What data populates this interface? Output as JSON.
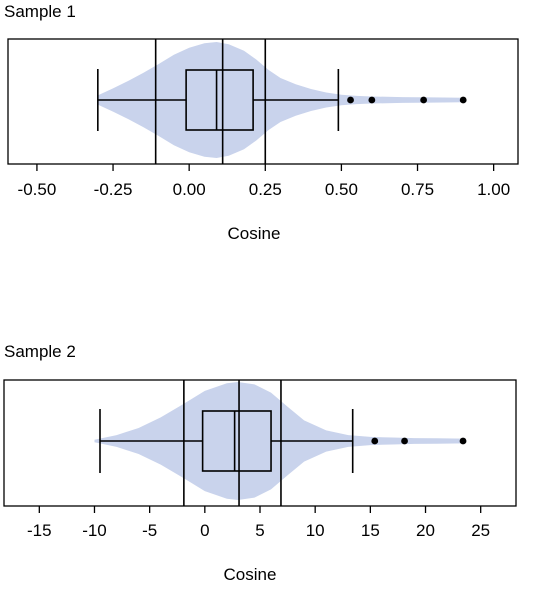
{
  "chart_data": [
    {
      "type": "violin-box",
      "title": "Sample 1",
      "xlabel": "Cosine",
      "ylabel": "",
      "xlim": [
        -0.595,
        1.08
      ],
      "xticks": [
        -0.5,
        -0.25,
        0.0,
        0.25,
        0.5,
        0.75,
        1.0
      ],
      "xtick_labels": [
        "-0.50",
        "-0.25",
        "0.00",
        "0.25",
        "0.50",
        "0.75",
        "1.00"
      ],
      "violin": {
        "color": "#c9d3ec",
        "profile": [
          [
            -0.3,
            0.08
          ],
          [
            -0.25,
            0.2
          ],
          [
            -0.2,
            0.33
          ],
          [
            -0.15,
            0.47
          ],
          [
            -0.1,
            0.62
          ],
          [
            -0.05,
            0.78
          ],
          [
            0.0,
            0.9
          ],
          [
            0.05,
            0.98
          ],
          [
            0.09,
            1.0
          ],
          [
            0.13,
            0.96
          ],
          [
            0.18,
            0.85
          ],
          [
            0.22,
            0.7
          ],
          [
            0.26,
            0.52
          ],
          [
            0.3,
            0.38
          ],
          [
            0.35,
            0.27
          ],
          [
            0.4,
            0.19
          ],
          [
            0.45,
            0.13
          ],
          [
            0.5,
            0.09
          ],
          [
            0.55,
            0.07
          ],
          [
            0.6,
            0.06
          ],
          [
            0.7,
            0.05
          ],
          [
            0.8,
            0.045
          ],
          [
            0.9,
            0.04
          ]
        ]
      },
      "box": {
        "whisker_low": -0.3,
        "q1": -0.01,
        "median": 0.09,
        "q3": 0.21,
        "whisker_high": 0.49
      },
      "outliers": [
        0.53,
        0.6,
        0.77,
        0.9
      ],
      "vlines": [
        -0.11,
        0.11,
        0.25
      ]
    },
    {
      "type": "violin-box",
      "title": "Sample 2",
      "xlabel": "Cosine",
      "ylabel": "",
      "xlim": [
        -18.2,
        28.2
      ],
      "xticks": [
        -15,
        -10,
        -5,
        0,
        5,
        10,
        15,
        20,
        25
      ],
      "xtick_labels": [
        "-15",
        "-10",
        "-5",
        "0",
        "5",
        "10",
        "15",
        "20",
        "25"
      ],
      "violin": {
        "color": "#c9d3ec",
        "profile": [
          [
            -10,
            0.02
          ],
          [
            -8,
            0.1
          ],
          [
            -6,
            0.22
          ],
          [
            -4,
            0.4
          ],
          [
            -2,
            0.62
          ],
          [
            0,
            0.85
          ],
          [
            2,
            0.98
          ],
          [
            3,
            1.0
          ],
          [
            4.5,
            0.96
          ],
          [
            6,
            0.82
          ],
          [
            7.5,
            0.58
          ],
          [
            9,
            0.35
          ],
          [
            11,
            0.18
          ],
          [
            13,
            0.1
          ],
          [
            15,
            0.07
          ],
          [
            17,
            0.06
          ],
          [
            19,
            0.05
          ],
          [
            21,
            0.045
          ],
          [
            23.5,
            0.04
          ]
        ]
      },
      "box": {
        "whisker_low": -9.5,
        "q1": -0.2,
        "median": 2.7,
        "q3": 6.0,
        "whisker_high": 13.4
      },
      "outliers": [
        15.4,
        18.1,
        23.4
      ],
      "vlines": [
        -1.9,
        3.1,
        6.9
      ]
    }
  ]
}
